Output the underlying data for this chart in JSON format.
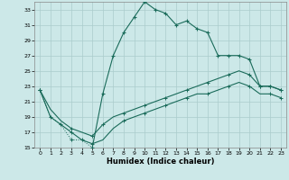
{
  "xlabel": "Humidex (Indice chaleur)",
  "background_color": "#cce8e8",
  "grid_color": "#aacccc",
  "line_color": "#1a6b5a",
  "xlim": [
    -0.5,
    23.5
  ],
  "ylim": [
    15,
    34
  ],
  "xticks": [
    0,
    1,
    2,
    3,
    4,
    5,
    6,
    7,
    8,
    9,
    10,
    11,
    12,
    13,
    14,
    15,
    16,
    17,
    18,
    19,
    20,
    21,
    22,
    23
  ],
  "yticks": [
    15,
    17,
    19,
    21,
    23,
    25,
    27,
    29,
    31,
    33
  ],
  "line1_x": [
    0,
    1,
    2,
    3,
    4,
    5,
    6,
    7,
    8,
    9,
    10,
    11,
    12,
    13,
    14,
    15,
    16,
    17,
    18,
    19,
    20,
    21,
    22,
    23
  ],
  "line1_y": [
    22.5,
    19,
    18,
    16,
    16,
    15,
    22,
    27,
    30,
    32,
    34,
    33,
    32.5,
    31,
    31.5,
    30.5,
    30,
    27,
    27,
    27,
    26.5,
    23,
    23,
    22.5
  ],
  "line1_dotted_x": [
    0,
    1,
    2,
    3,
    4,
    5
  ],
  "line1_dotted_y": [
    22.5,
    19,
    18,
    16,
    16,
    15
  ],
  "line2_x": [
    0,
    1,
    2,
    3,
    4,
    5,
    6,
    7,
    8,
    9,
    10,
    11,
    12,
    13,
    14,
    15,
    16,
    17,
    18,
    19,
    20,
    21,
    22,
    23
  ],
  "line2_y": [
    22.5,
    20,
    18.5,
    17.5,
    17,
    16.5,
    18,
    19,
    19.5,
    20,
    20.5,
    21,
    21.5,
    22,
    22.5,
    23,
    23.5,
    24,
    24.5,
    25,
    24.5,
    23,
    23,
    22.5
  ],
  "line3_x": [
    0,
    1,
    2,
    3,
    4,
    5,
    6,
    7,
    8,
    9,
    10,
    11,
    12,
    13,
    14,
    15,
    16,
    17,
    18,
    19,
    20,
    21,
    22,
    23
  ],
  "line3_y": [
    22.5,
    19,
    18,
    17,
    16,
    15.5,
    16,
    17.5,
    18.5,
    19,
    19.5,
    20,
    20.5,
    21,
    21.5,
    22,
    22,
    22.5,
    23,
    23.5,
    23,
    22,
    22,
    21.5
  ],
  "m1_x": [
    0,
    1,
    2,
    3,
    4,
    5,
    6,
    7,
    8,
    9,
    10,
    11,
    12,
    13,
    14,
    15,
    16,
    17,
    18,
    19,
    20,
    21,
    22,
    23
  ],
  "m1_y": [
    22.5,
    19,
    18,
    16,
    16,
    15,
    22,
    27,
    30,
    32,
    34,
    33,
    32.5,
    31,
    31.5,
    30.5,
    30,
    27,
    27,
    27,
    26.5,
    23,
    23,
    22.5
  ],
  "m2_x": [
    0,
    3,
    5,
    6,
    8,
    10,
    12,
    14,
    16,
    18,
    20,
    21,
    22,
    23
  ],
  "m2_y": [
    22.5,
    17.5,
    16.5,
    18,
    19.5,
    20.5,
    21.5,
    22.5,
    23.5,
    24.5,
    24.5,
    23,
    23,
    22.5
  ],
  "m3_x": [
    0,
    3,
    5,
    8,
    10,
    12,
    14,
    16,
    18,
    20,
    22,
    23
  ],
  "m3_y": [
    22.5,
    17,
    15.5,
    18.5,
    19.5,
    20.5,
    21.5,
    22,
    23,
    23,
    22,
    21.5
  ]
}
